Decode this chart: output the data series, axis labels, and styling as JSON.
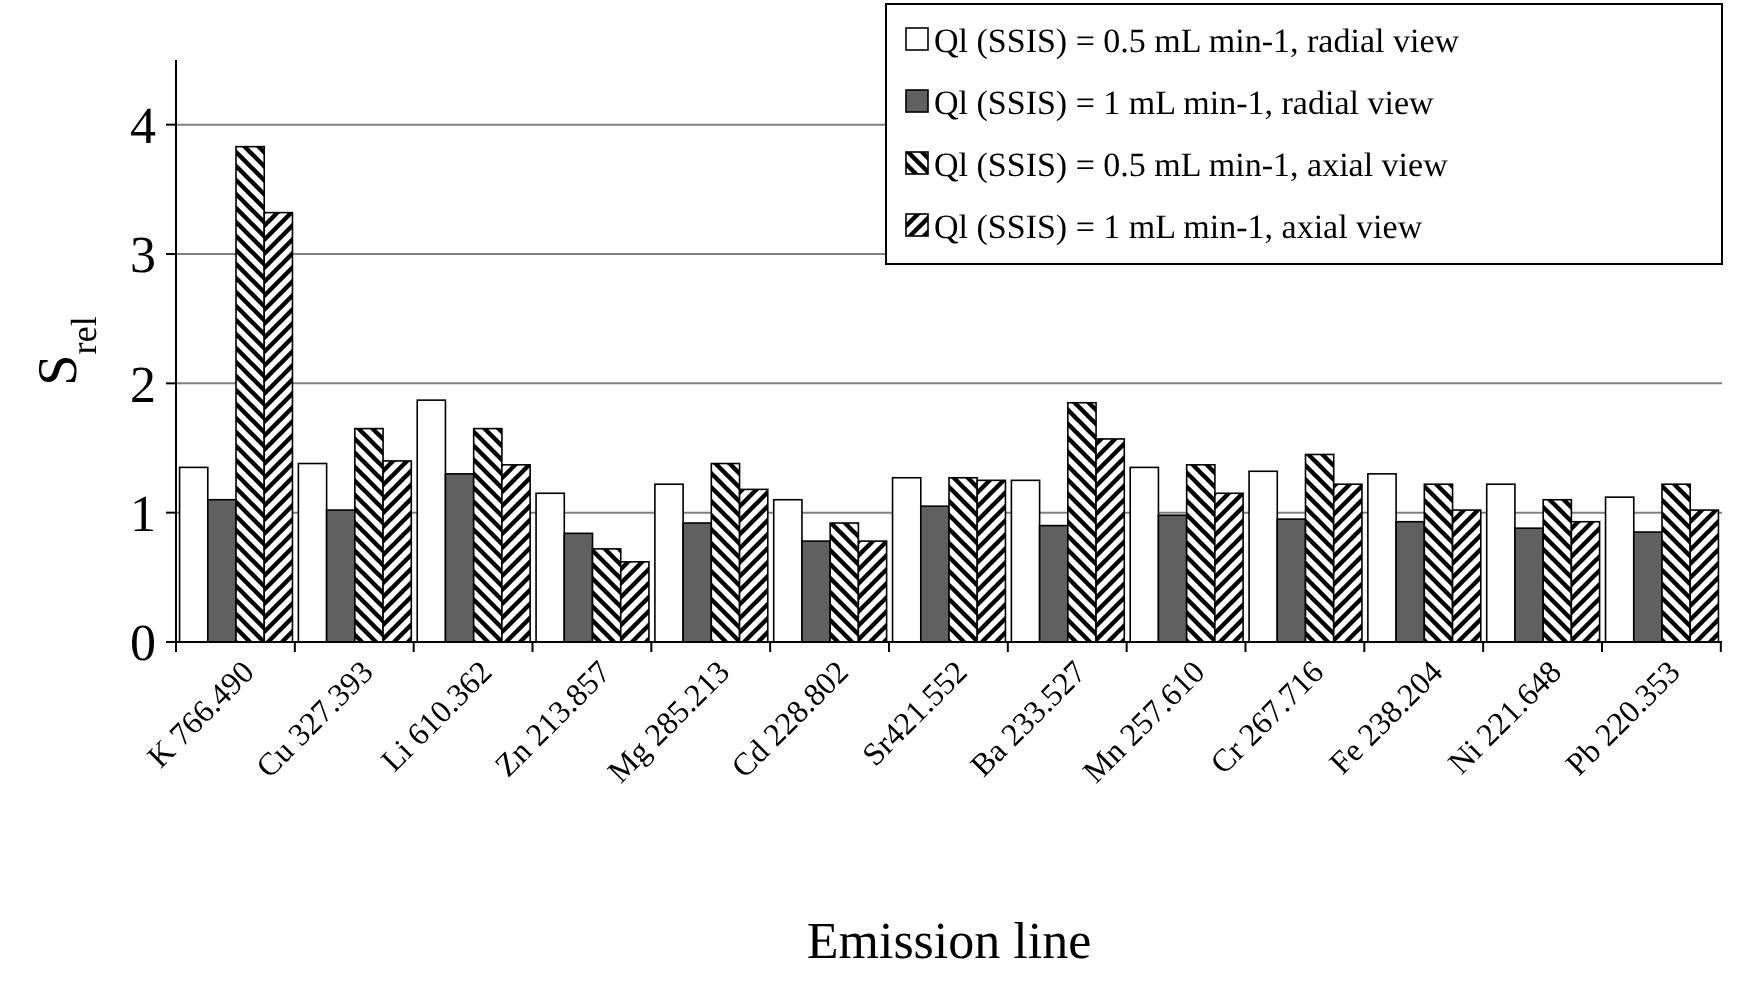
{
  "chart_data": {
    "type": "bar",
    "xlabel": "Emission line",
    "ylabel": "S$_{rel}$",
    "categories": [
      "K 766.490",
      "Cu 327.393",
      "Li 610.362",
      "Zn 213.857",
      "Mg 285.213",
      "Cd 228.802",
      "Sr421.552",
      "Ba 233.527",
      "Mn 257.610",
      "Cr 267.716",
      "Fe 238.204",
      "Ni 221.648",
      "Pb 220.353"
    ],
    "series": [
      {
        "name": "Ql (SSIS) = 0.5 mL min-1, radial view",
        "color": "#ffffff",
        "values": [
          1.35,
          1.38,
          1.87,
          1.15,
          1.22,
          1.1,
          1.27,
          1.25,
          1.35,
          1.32,
          1.3,
          1.22,
          1.12
        ]
      },
      {
        "name": "Ql (SSIS) = 1 mL min-1, radial view",
        "color": "#606060",
        "values": [
          1.1,
          1.02,
          1.3,
          0.84,
          0.92,
          0.78,
          1.05,
          0.9,
          0.98,
          0.95,
          0.93,
          0.88,
          0.85
        ]
      },
      {
        "name": "Ql (SSIS) = 0.5 mL min-1, axial view",
        "color": "#000000",
        "values": [
          3.83,
          1.65,
          1.65,
          0.72,
          1.38,
          0.92,
          1.27,
          1.85,
          1.37,
          1.45,
          1.22,
          1.1,
          1.22
        ]
      },
      {
        "name": "Ql (SSIS) = 1 mL min-1, axial view",
        "color": "#000000",
        "values": [
          3.32,
          1.4,
          1.37,
          0.62,
          1.18,
          0.78,
          1.25,
          1.57,
          1.15,
          1.22,
          1.02,
          0.93,
          1.02
        ]
      }
    ],
    "ylim": [
      0,
      4.5
    ],
    "yticks": [
      0,
      1,
      2,
      3,
      4
    ],
    "grid": "y",
    "legend": "top right"
  }
}
